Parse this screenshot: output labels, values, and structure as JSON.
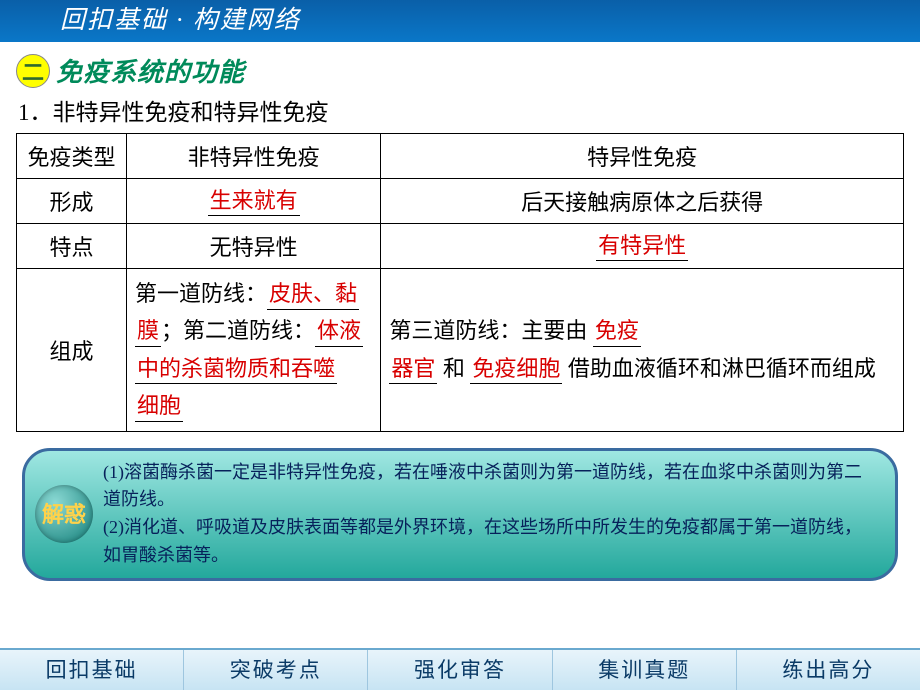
{
  "header": {
    "title": "回扣基础 · 构建网络"
  },
  "section": {
    "badge": "二",
    "title": "免疫系统的功能"
  },
  "numline": "1．非特异性免疫和特异性免疫",
  "table": {
    "head": {
      "c0": "免疫类型",
      "c1": "非特异性免疫",
      "c2": "特异性免疫"
    },
    "row_form": {
      "label": "形成",
      "c1_fill": "生来就有",
      "c2_text": "后天接触病原体之后获得"
    },
    "row_feat": {
      "label": "特点",
      "c1_text": "无特异性",
      "c2_fill": "有特异性"
    },
    "row_comp": {
      "label": "组成",
      "c1": {
        "t1": "第一道防线：",
        "f1a": "皮肤、黏",
        "f1b": "膜",
        "t2": "；第二道防线：",
        "f2a": "体液",
        "f2b": "中的杀菌物质和吞噬",
        "f2c": "细胞"
      },
      "c2": {
        "t1": "第三道防线：主要由",
        "f1a": "免疫",
        "f1b": "器官",
        "t2": "和",
        "f2": "免疫细胞",
        "t3": "借助血液循环和淋巴循环而组成"
      }
    }
  },
  "explain": {
    "badge": "解惑",
    "line1": "(1)溶菌酶杀菌一定是非特异性免疫，若在唾液中杀菌则为第一道防线，若在血浆中杀菌则为第二道防线。",
    "line2": "(2)消化道、呼吸道及皮肤表面等都是外界环境，在这些场所中所发生的免疫都属于第一道防线，如胃酸杀菌等。"
  },
  "nav": {
    "items": [
      "回扣基础",
      "突破考点",
      "强化审答",
      "集训真题",
      "练出高分"
    ]
  },
  "colors": {
    "accent_red": "#d80000",
    "accent_green": "#008a5a",
    "header_bg": "#0a77c8"
  }
}
